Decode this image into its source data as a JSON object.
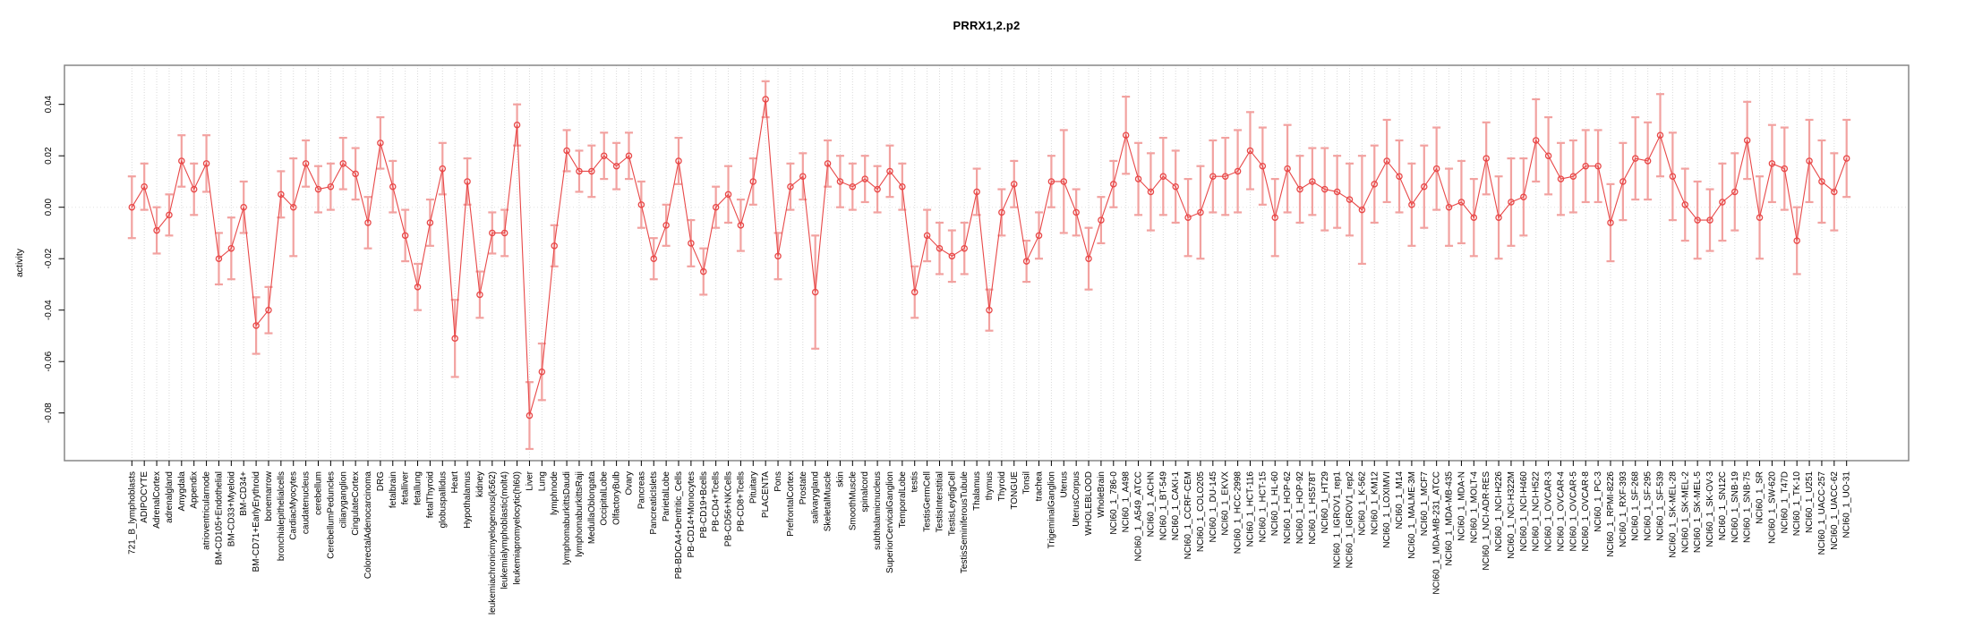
{
  "chart_data": {
    "type": "line",
    "title": "PRRX1,2.p2",
    "ylabel": "activity",
    "xlabel": "",
    "legend": "none",
    "grid": "vertical dotted line at every category; horizontal dotted line at 0",
    "x_tick_rotation": 90,
    "n_points": 139,
    "ylim": [
      -0.0985,
      0.0552
    ],
    "yticks": [
      0.04,
      0.02,
      0.0,
      -0.02,
      -0.04,
      -0.06,
      -0.08
    ],
    "point_color": "#e84848",
    "errorbar_color": "#f2a2a0",
    "gridline_color": "#d9d9d9",
    "zeroline_color": "#e2e2e2",
    "box_color": "#878787",
    "text_color": "#000000",
    "categories": [
      "721_B_lymphoblasts",
      "ADIPOCYTE",
      "AdrenalCortex",
      "adrenalgland",
      "Amygdala",
      "Appendix",
      "atrioventricularnode",
      "BM-CD105+Endothelial",
      "BM-CD33+Myeloid",
      "BM-CD34+",
      "BM-CD71+EarlyErythroid",
      "bonemarrow",
      "bronchialepithelialcells",
      "CardiacMyocytes",
      "caudatenucleus",
      "cerebellum",
      "CerebellumPeduncles",
      "ciliaryganglion",
      "CingulateCortex",
      "ColorectalAdenocarcinoma",
      "DRG",
      "fetalbrain",
      "fetalliver",
      "fetallung",
      "fetalThyroid",
      "globuspallidus",
      "Heart",
      "Hypothalamus",
      "kidney",
      "leukemiachronicmyelogenous(k562)",
      "leukemialymphoblastic(molt4)",
      "leukemiapromyelocytic(hl60)",
      "Liver",
      "Lung",
      "lymphnode",
      "lymphomaburkittsDaudi",
      "lymphomaburkittsRaji",
      "MedullaOblongata",
      "OccipitalLobe",
      "OlfactoryBulb",
      "Ovary",
      "Pancreas",
      "PancreaticIslets",
      "ParietalLobe",
      "PB-BDCA4+Dentritic_Cells",
      "PB-CD14+Monocytes",
      "PB-CD19+Bcells",
      "PB-CD4+Tcells",
      "PB-CD56+NKCells",
      "PB-CD8+Tcells",
      "Pituitary",
      "PLACENTA",
      "Pons",
      "PrefrontalCortex",
      "Prostate",
      "salivarygland",
      "SkeletalMuscle",
      "skin",
      "SmoothMuscle",
      "spinalcord",
      "subthalamicnucleus",
      "SuperiorCervicalGanglion",
      "TemporalLobe",
      "testis",
      "TestisGermCell",
      "TestisInterstitial",
      "TestisLeydigCell",
      "TestisSeminiferousTubule",
      "Thalamus",
      "thymus",
      "Thyroid",
      "TONGUE",
      "Tonsil",
      "trachea",
      "TrigeminalGanglion",
      "Uterus",
      "UterusCorpus",
      "WHOLEBLOOD",
      "WholeBrain",
      "NCI60_1_786-0",
      "NCI60_1_A498",
      "NCI60_1_A549_ATCC",
      "NCI60_1_ACHN",
      "NCI60_1_BT-549",
      "NCI60_1_CAKI-1",
      "NCI60_1_CCRF-CEM",
      "NCI60_1_COLO205",
      "NCI60_1_DU-145",
      "NCI60_1_EKVX",
      "NCI60_1_HCC-2998",
      "NCI60_1_HCT-116",
      "NCI60_1_HCT-15",
      "NCI60_1_HL-60",
      "NCI60_1_HOP-62",
      "NCI60_1_HOP-92",
      "NCI60_1_HS578T",
      "NCI60_1_HT29",
      "NCI60_1_IGROV1_rep1",
      "NCI60_1_IGROV1_rep2",
      "NCI60_1_K-562",
      "NCI60_1_KM12",
      "NCI60_1_LOXIMVI",
      "NCI60_1_M14",
      "NCI60_1_MALME-3M",
      "NCI60_1_MCF7",
      "NCI60_1_MDA-MB-231_ATCC",
      "NCI60_1_MDA-MB-435",
      "NCI60_1_MDA-N",
      "NCI60_1_MOLT-4",
      "NCI60_1_NCI-ADR-RES",
      "NCI60_1_NCI-H226",
      "NCI60_1_NCI-H322M",
      "NCI60_1_NCI-H460",
      "NCI60_1_NCI-H522",
      "NCI60_1_OVCAR-3",
      "NCI60_1_OVCAR-4",
      "NCI60_1_OVCAR-5",
      "NCI60_1_OVCAR-8",
      "NCI60_1_PC-3",
      "NCI60_1_RPMI-8226",
      "NCI60_1_RXF-393",
      "NCI60_1_SF-268",
      "NCI60_1_SF-295",
      "NCI60_1_SF-539",
      "NCI60_1_SK-MEL-28",
      "NCI60_1_SK-MEL-2",
      "NCI60_1_SK-MEL-5",
      "NCI60_1_SK-OV-3",
      "NCI60_1_SN12C",
      "NCI60_1_SNB-19",
      "NCI60_1_SNB-75",
      "NCI60_1_SR",
      "NCI60_1_SW-620",
      "NCI60_1_T47D",
      "NCI60_1_TK-10",
      "NCI60_1_U251",
      "NCI60_1_UACC-257",
      "NCI60_1_UACC-62",
      "NCI60_1_UO-31"
    ],
    "series": [
      {
        "name": "activity",
        "values": [
          0.0,
          0.008,
          -0.009,
          -0.003,
          0.018,
          0.007,
          0.017,
          -0.02,
          -0.016,
          0.0,
          -0.046,
          -0.04,
          0.005,
          0.0,
          0.017,
          0.007,
          0.008,
          0.017,
          0.013,
          -0.006,
          0.025,
          0.008,
          -0.011,
          -0.031,
          -0.006,
          0.015,
          -0.051,
          0.01,
          -0.034,
          -0.01,
          -0.01,
          0.032,
          -0.081,
          -0.064,
          -0.015,
          0.022,
          0.014,
          0.014,
          0.02,
          0.016,
          0.02,
          0.001,
          -0.02,
          -0.007,
          0.018,
          -0.014,
          -0.025,
          0.0,
          0.005,
          -0.007,
          0.01,
          0.042,
          -0.019,
          0.008,
          0.012,
          -0.033,
          0.017,
          0.01,
          0.008,
          0.011,
          0.007,
          0.014,
          0.008,
          -0.033,
          -0.011,
          -0.016,
          -0.019,
          -0.016,
          0.006,
          -0.04,
          -0.002,
          0.009,
          -0.021,
          -0.011,
          0.01,
          0.01,
          -0.002,
          -0.02,
          -0.005,
          0.009,
          0.028,
          0.011,
          0.006,
          0.012,
          0.008,
          -0.004,
          -0.002,
          0.012,
          0.012,
          0.014,
          0.022,
          0.016,
          -0.004,
          0.015,
          0.007,
          0.01,
          0.007,
          0.006,
          0.003,
          -0.001,
          0.009,
          0.018,
          0.012,
          0.001,
          0.008,
          0.015,
          0.0,
          0.002,
          -0.004,
          0.019,
          -0.004,
          0.002,
          0.004,
          0.026,
          0.02,
          0.011,
          0.012,
          0.016,
          0.016,
          -0.006,
          0.01,
          0.019,
          0.018,
          0.028,
          0.012,
          0.001,
          -0.005,
          -0.005,
          0.002,
          0.006,
          0.026,
          -0.004,
          0.017,
          0.015,
          -0.013,
          0.018,
          0.01,
          0.006,
          0.019
        ]
      },
      {
        "name": "error_halfwidth",
        "values": [
          0.012,
          0.009,
          0.009,
          0.008,
          0.01,
          0.01,
          0.011,
          0.01,
          0.012,
          0.01,
          0.011,
          0.009,
          0.009,
          0.019,
          0.009,
          0.009,
          0.009,
          0.01,
          0.01,
          0.01,
          0.01,
          0.01,
          0.01,
          0.009,
          0.009,
          0.01,
          0.015,
          0.009,
          0.009,
          0.008,
          0.009,
          0.008,
          0.013,
          0.011,
          0.008,
          0.008,
          0.008,
          0.01,
          0.009,
          0.009,
          0.009,
          0.009,
          0.008,
          0.008,
          0.009,
          0.009,
          0.009,
          0.008,
          0.011,
          0.01,
          0.009,
          0.007,
          0.009,
          0.009,
          0.009,
          0.022,
          0.009,
          0.01,
          0.009,
          0.009,
          0.009,
          0.01,
          0.009,
          0.01,
          0.01,
          0.01,
          0.01,
          0.01,
          0.009,
          0.008,
          0.009,
          0.009,
          0.008,
          0.009,
          0.01,
          0.02,
          0.009,
          0.012,
          0.009,
          0.009,
          0.015,
          0.014,
          0.015,
          0.015,
          0.014,
          0.015,
          0.018,
          0.014,
          0.015,
          0.016,
          0.015,
          0.015,
          0.015,
          0.017,
          0.013,
          0.013,
          0.016,
          0.014,
          0.014,
          0.021,
          0.015,
          0.016,
          0.014,
          0.016,
          0.016,
          0.016,
          0.015,
          0.016,
          0.015,
          0.014,
          0.016,
          0.017,
          0.015,
          0.016,
          0.015,
          0.014,
          0.014,
          0.014,
          0.014,
          0.015,
          0.015,
          0.016,
          0.015,
          0.016,
          0.017,
          0.014,
          0.015,
          0.012,
          0.015,
          0.015,
          0.015,
          0.016,
          0.015,
          0.016,
          0.013,
          0.016,
          0.016,
          0.015,
          0.015
        ]
      }
    ]
  }
}
